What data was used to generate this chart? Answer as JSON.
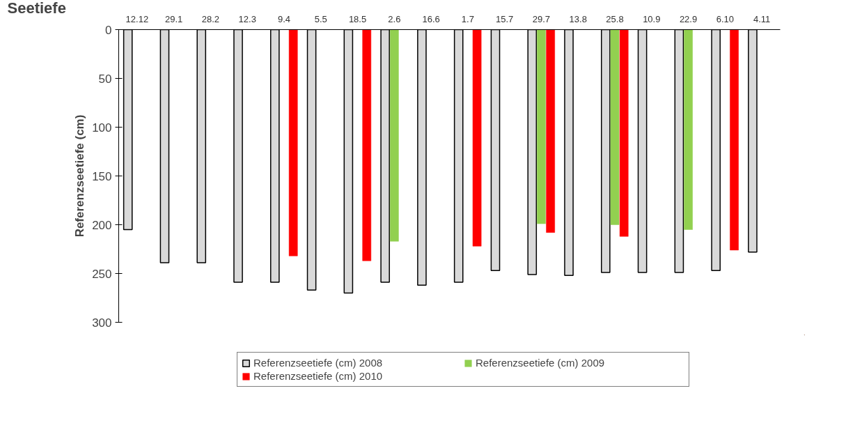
{
  "chart_data": {
    "type": "bar",
    "xlabel": "Seetiefe",
    "ylabel": "Referenzseetiefe (cm)",
    "categories": [
      "12.12",
      "29.1",
      "28.2",
      "12.3",
      "9.4",
      "5.5",
      "18.5",
      "2.6",
      "16.6",
      "1.7",
      "15.7",
      "29.7",
      "13.8",
      "25.8",
      "10.9",
      "22.9",
      "6.10",
      "4.11"
    ],
    "series": [
      {
        "name": "Referenzseetiefe (cm) 2008",
        "color": "#d9d9d9",
        "values": [
          205,
          239,
          239,
          259,
          259,
          267,
          270,
          259,
          262,
          259,
          247,
          251,
          252,
          249,
          249,
          249,
          247,
          228
        ]
      },
      {
        "name": "Referenzseetiefe (cm) 2009",
        "color": "#92d050",
        "values": [
          null,
          null,
          null,
          null,
          null,
          null,
          null,
          217,
          null,
          null,
          null,
          199,
          null,
          200,
          null,
          205,
          null,
          null
        ]
      },
      {
        "name": "Referenzseetiefe (cm) 2010",
        "color": "#ff0000",
        "values": [
          null,
          null,
          null,
          null,
          232,
          null,
          237,
          null,
          null,
          222,
          null,
          208,
          null,
          212,
          null,
          null,
          226,
          null
        ]
      }
    ],
    "ylim": [
      300,
      0
    ],
    "yticks": [
      0,
      50,
      100,
      150,
      200,
      250,
      300
    ],
    "grid": false,
    "legend": "bottom"
  }
}
